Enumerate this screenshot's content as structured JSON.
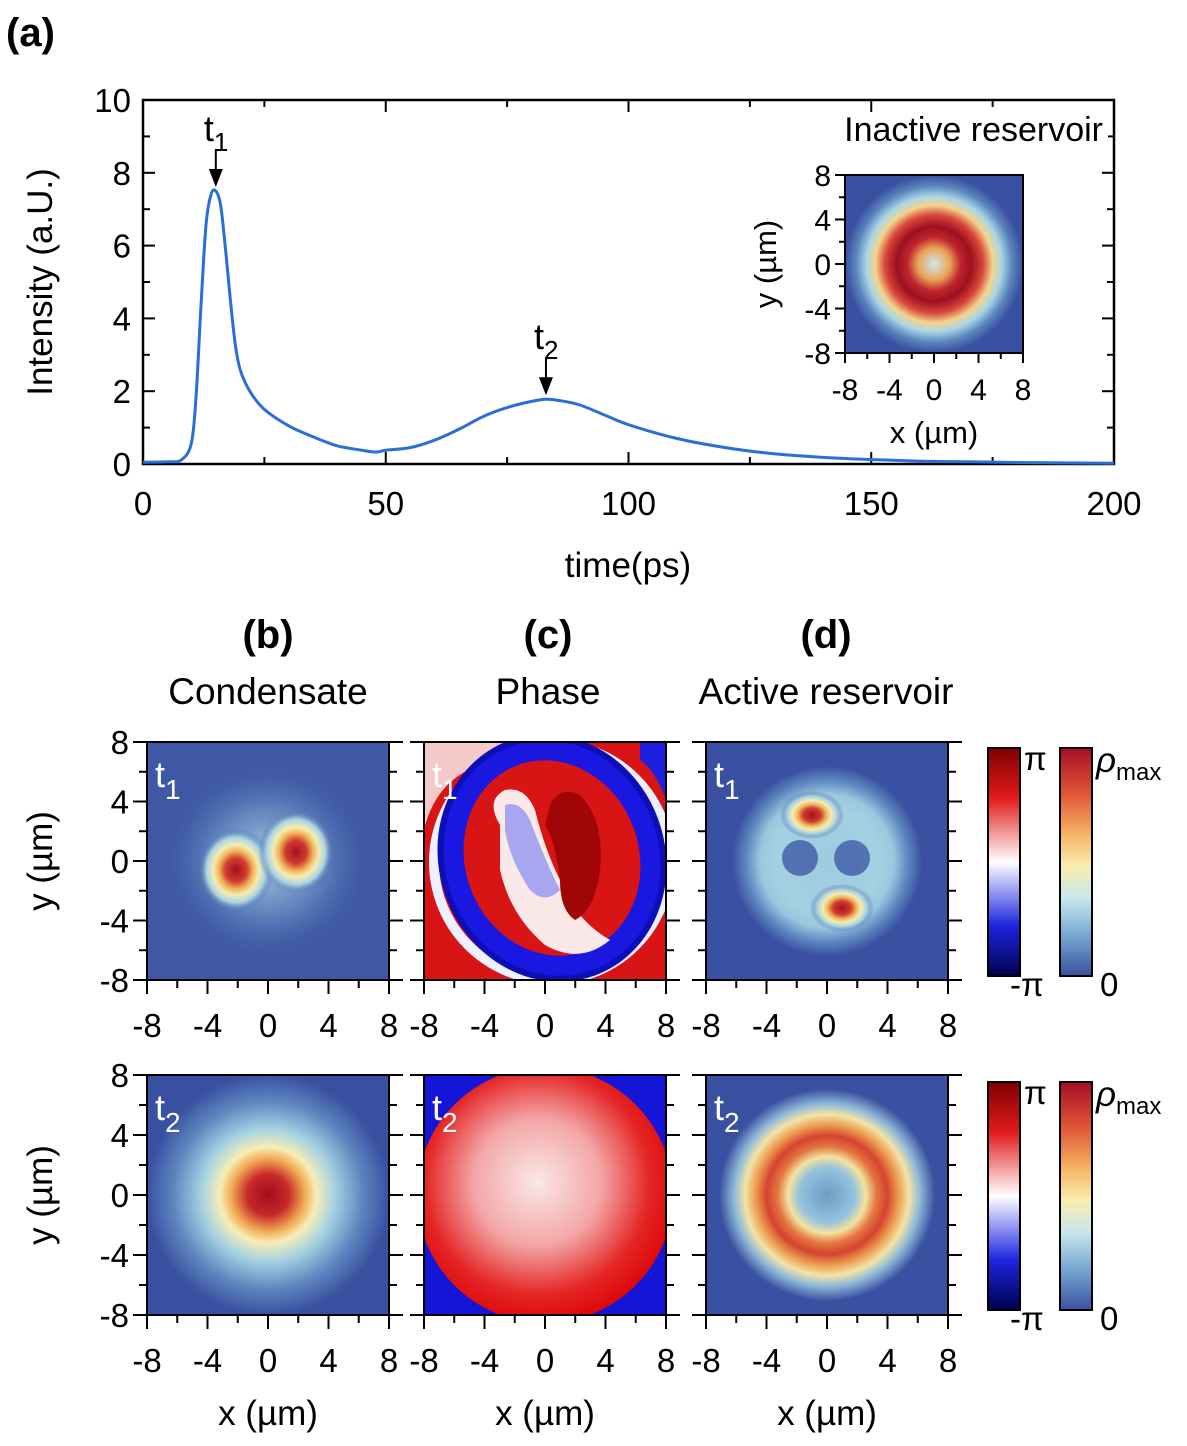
{
  "panel_labels": {
    "a": "(a)",
    "b": "(b)",
    "c": "(c)",
    "d": "(d)"
  },
  "column_titles": {
    "b": "Condensate",
    "c": "Phase",
    "d": "Active reservoir"
  },
  "time_labels": {
    "t1": "t",
    "t1_sub": "1",
    "t2": "t",
    "t2_sub": "2"
  },
  "colorbars": {
    "phase": {
      "max_label": "π",
      "min_label": "-π"
    },
    "density": {
      "max_symbol": "ρ",
      "max_sub": "max",
      "min_label": "0"
    }
  },
  "colors": {
    "curve": "#2a6fd6"
  },
  "chart_data": [
    {
      "id": "a",
      "type": "line",
      "title": "",
      "xlabel": "time(ps)",
      "ylabel": "Intensity (a.U.)",
      "xlim": [
        0,
        200
      ],
      "ylim": [
        0,
        10
      ],
      "xticks": [
        0,
        50,
        100,
        150,
        200
      ],
      "xtick_labels": [
        "0",
        "50",
        "100",
        "150",
        "200"
      ],
      "yticks": [
        0,
        2,
        4,
        6,
        8,
        10
      ],
      "ytick_labels": [
        "0",
        "2",
        "4",
        "6",
        "8",
        "10"
      ],
      "grid": false,
      "series": [
        {
          "x": [
            0,
            5,
            8,
            10,
            11,
            12,
            13,
            14,
            15,
            16,
            17,
            18,
            19,
            20,
            22,
            25,
            30,
            35,
            40,
            45,
            48,
            50,
            55,
            60,
            65,
            70,
            75,
            80,
            83,
            86,
            90,
            95,
            100,
            110,
            120,
            130,
            140,
            150,
            160,
            170,
            180,
            190,
            200
          ],
          "y": [
            0.05,
            0.06,
            0.12,
            0.6,
            2.0,
            4.5,
            6.6,
            7.4,
            7.5,
            7.1,
            5.9,
            4.5,
            3.3,
            2.6,
            2.0,
            1.5,
            1.05,
            0.75,
            0.5,
            0.38,
            0.33,
            0.38,
            0.45,
            0.65,
            0.95,
            1.3,
            1.55,
            1.72,
            1.78,
            1.74,
            1.62,
            1.35,
            1.08,
            0.7,
            0.45,
            0.28,
            0.18,
            0.12,
            0.08,
            0.06,
            0.04,
            0.03,
            0.02
          ]
        }
      ],
      "annotations": [
        {
          "label": "t",
          "sub": "1",
          "x": 15,
          "y": 7.5
        },
        {
          "label": "t",
          "sub": "2",
          "x": 83,
          "y": 1.78
        }
      ]
    },
    {
      "id": "a-inset",
      "type": "heatmap",
      "title": "Inactive reservoir",
      "xlabel": "x (µm)",
      "ylabel": "y (µm)",
      "xlim": [
        -8,
        8
      ],
      "ylim": [
        -8,
        8
      ],
      "xtick_labels": [
        "-8",
        "-4",
        "0",
        "4",
        "8"
      ],
      "ytick_labels": [
        "8",
        "4",
        "0",
        "-4",
        "-8"
      ]
    },
    {
      "id": "maps",
      "type": "heatmap",
      "xlabel": "x (µm)",
      "ylabel": "y (µm)",
      "xlim": [
        -8,
        8
      ],
      "ylim": [
        -8,
        8
      ],
      "xtick_labels": [
        "-8",
        "-4",
        "0",
        "4",
        "8"
      ],
      "ytick_labels": [
        "8",
        "4",
        "0",
        "-4",
        "-8"
      ],
      "columns": [
        "Condensate",
        "Phase",
        "Active reservoir"
      ],
      "rows": [
        "t1",
        "t2"
      ]
    }
  ]
}
